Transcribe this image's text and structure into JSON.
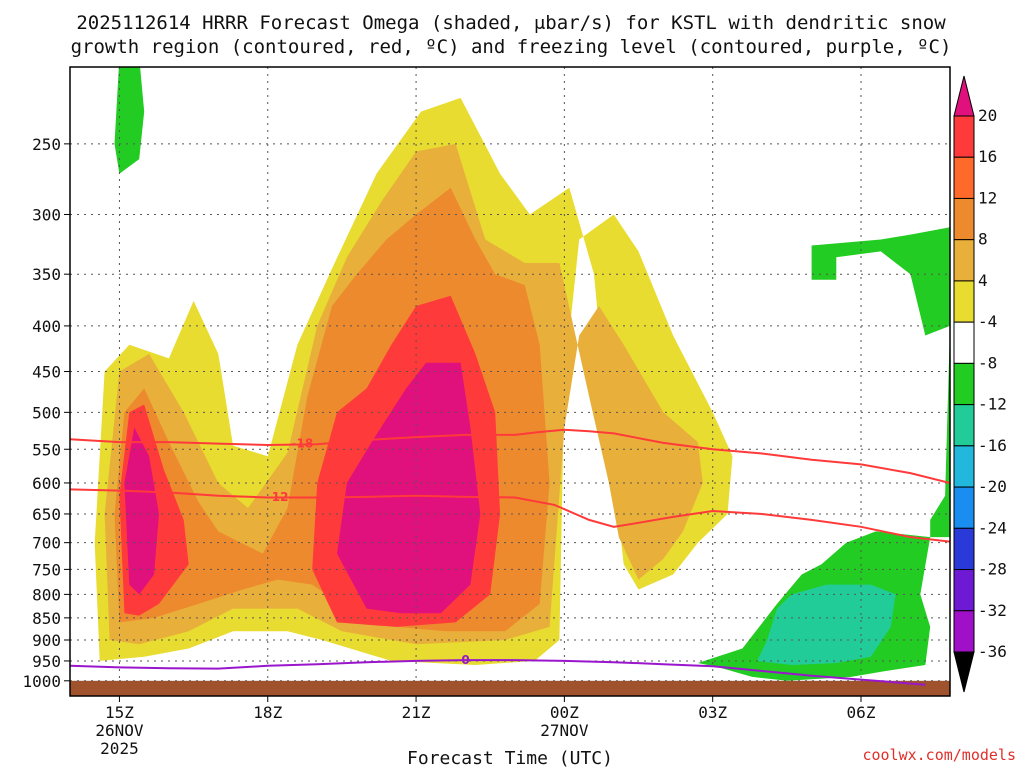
{
  "chart_data": {
    "type": "heatmap",
    "title_line1": "2025112614 HRRR Forecast Omega (shaded, μbar/s) for KSTL with dendritic snow",
    "title_line2": "growth region (contoured, red, ºC) and freezing level (contoured, purple, ºC)",
    "xlabel": "Forecast Time (UTC)",
    "credit": "coolwx.com/models",
    "x_ticks": [
      {
        "h": 15,
        "lines": [
          "15Z",
          "26NOV",
          "2025"
        ]
      },
      {
        "h": 18,
        "lines": [
          "18Z"
        ]
      },
      {
        "h": 21,
        "lines": [
          "21Z"
        ]
      },
      {
        "h": 24,
        "lines": [
          "00Z",
          "27NOV"
        ]
      },
      {
        "h": 27,
        "lines": [
          "03Z"
        ]
      },
      {
        "h": 30,
        "lines": [
          "06Z"
        ]
      }
    ],
    "xlim": [
      14.0,
      31.8
    ],
    "y_scale": "log",
    "ylim": [
      1040,
      205
    ],
    "y_ticks": [
      250,
      300,
      350,
      400,
      450,
      500,
      550,
      600,
      650,
      700,
      750,
      800,
      850,
      900,
      950,
      1000
    ],
    "grid": true,
    "ground_level_hpa": 1000,
    "colorbar": {
      "levels": [
        20,
        16,
        12,
        8,
        4,
        -4,
        -8,
        -12,
        -16,
        -20,
        -24,
        -28,
        -32,
        -36
      ],
      "colors": [
        "#ff3a3a",
        "#ff6a2a",
        "#ee8a2e",
        "#e8b03a",
        "#e8dc30",
        "#ffffff",
        "#22cc22",
        "#22cc99",
        "#22b8dd",
        "#1a8ef0",
        "#2a3ad8",
        "#6e1ad4",
        "#a010c8",
        "#a8a8a8"
      ],
      "top_color": "#e0107c",
      "bottom_color": "#000000"
    },
    "omega_regions": [
      {
        "level": 4,
        "color": "#e8dc30",
        "points": [
          [
            14.6,
            950
          ],
          [
            14.5,
            700
          ],
          [
            14.7,
            450
          ],
          [
            15.2,
            420
          ],
          [
            16.0,
            435
          ],
          [
            16.5,
            375
          ],
          [
            17.0,
            430
          ],
          [
            17.3,
            545
          ],
          [
            18.0,
            560
          ],
          [
            18.6,
            420
          ],
          [
            19.3,
            345
          ],
          [
            20.2,
            270
          ],
          [
            21.1,
            230
          ],
          [
            21.9,
            222
          ],
          [
            22.7,
            270
          ],
          [
            23.3,
            300
          ],
          [
            24.1,
            280
          ],
          [
            24.6,
            350
          ],
          [
            24.9,
            530
          ],
          [
            25.2,
            740
          ],
          [
            25.5,
            790
          ],
          [
            26.2,
            760
          ],
          [
            26.7,
            700
          ],
          [
            27.3,
            650
          ],
          [
            27.4,
            560
          ],
          [
            27.0,
            500
          ],
          [
            26.2,
            410
          ],
          [
            25.5,
            330
          ],
          [
            25.0,
            300
          ],
          [
            24.3,
            320
          ],
          [
            24.0,
            460
          ],
          [
            23.9,
            900
          ],
          [
            23.4,
            950
          ],
          [
            22.2,
            960
          ],
          [
            20.5,
            950
          ],
          [
            19.1,
            900
          ],
          [
            18.4,
            880
          ],
          [
            17.3,
            880
          ],
          [
            16.4,
            920
          ],
          [
            15.5,
            940
          ]
        ]
      },
      {
        "level": 8,
        "color": "#e8b03a",
        "points": [
          [
            14.8,
            900
          ],
          [
            14.7,
            650
          ],
          [
            15.0,
            450
          ],
          [
            15.6,
            430
          ],
          [
            16.3,
            500
          ],
          [
            17.0,
            600
          ],
          [
            17.6,
            640
          ],
          [
            18.4,
            555
          ],
          [
            19.0,
            400
          ],
          [
            19.6,
            335
          ],
          [
            20.3,
            290
          ],
          [
            21.0,
            255
          ],
          [
            21.8,
            250
          ],
          [
            22.4,
            320
          ],
          [
            23.2,
            340
          ],
          [
            23.9,
            340
          ],
          [
            24.5,
            480
          ],
          [
            24.9,
            600
          ],
          [
            25.1,
            690
          ],
          [
            25.5,
            770
          ],
          [
            26.0,
            730
          ],
          [
            26.4,
            680
          ],
          [
            26.8,
            600
          ],
          [
            26.7,
            540
          ],
          [
            26.0,
            500
          ],
          [
            25.2,
            420
          ],
          [
            24.7,
            380
          ],
          [
            24.3,
            410
          ],
          [
            24.0,
            520
          ],
          [
            23.7,
            870
          ],
          [
            22.8,
            900
          ],
          [
            21.0,
            910
          ],
          [
            19.5,
            880
          ],
          [
            18.6,
            830
          ],
          [
            17.3,
            830
          ],
          [
            16.4,
            880
          ],
          [
            15.4,
            910
          ]
        ]
      },
      {
        "level": 12,
        "color": "#ee8a2e",
        "points": [
          [
            15.0,
            860
          ],
          [
            14.9,
            650
          ],
          [
            15.1,
            500
          ],
          [
            15.5,
            470
          ],
          [
            16.0,
            540
          ],
          [
            16.6,
            630
          ],
          [
            17.0,
            680
          ],
          [
            17.9,
            720
          ],
          [
            18.4,
            640
          ],
          [
            18.8,
            480
          ],
          [
            19.3,
            380
          ],
          [
            19.8,
            350
          ],
          [
            20.4,
            320
          ],
          [
            21.0,
            300
          ],
          [
            21.7,
            280
          ],
          [
            22.2,
            320
          ],
          [
            22.6,
            350
          ],
          [
            23.2,
            360
          ],
          [
            23.5,
            420
          ],
          [
            23.7,
            600
          ],
          [
            23.5,
            820
          ],
          [
            22.8,
            880
          ],
          [
            21.6,
            880
          ],
          [
            20.6,
            870
          ],
          [
            19.6,
            830
          ],
          [
            18.9,
            780
          ],
          [
            18.2,
            770
          ],
          [
            17.5,
            790
          ],
          [
            16.6,
            820
          ],
          [
            15.7,
            850
          ]
        ]
      },
      {
        "level": 16,
        "color": "#ff3a3a",
        "points": [
          [
            15.1,
            840
          ],
          [
            15.0,
            620
          ],
          [
            15.2,
            500
          ],
          [
            15.5,
            490
          ],
          [
            15.9,
            580
          ],
          [
            16.3,
            660
          ],
          [
            16.4,
            740
          ],
          [
            15.8,
            820
          ],
          [
            15.4,
            845
          ]
        ]
      },
      {
        "level": 16,
        "color": "#ff3a3a",
        "points": [
          [
            19.4,
            860
          ],
          [
            18.9,
            750
          ],
          [
            19.0,
            600
          ],
          [
            19.4,
            500
          ],
          [
            20.0,
            470
          ],
          [
            20.5,
            420
          ],
          [
            21.0,
            380
          ],
          [
            21.7,
            370
          ],
          [
            22.2,
            430
          ],
          [
            22.6,
            500
          ],
          [
            22.7,
            650
          ],
          [
            22.5,
            800
          ],
          [
            21.8,
            860
          ],
          [
            20.6,
            870
          ]
        ]
      },
      {
        "level": 20,
        "color": "#e0107c",
        "points": [
          [
            15.2,
            780
          ],
          [
            15.1,
            600
          ],
          [
            15.3,
            520
          ],
          [
            15.6,
            560
          ],
          [
            15.8,
            650
          ],
          [
            15.7,
            760
          ],
          [
            15.4,
            800
          ]
        ]
      },
      {
        "level": 20,
        "color": "#e0107c",
        "points": [
          [
            20.0,
            830
          ],
          [
            19.4,
            720
          ],
          [
            19.6,
            600
          ],
          [
            20.1,
            540
          ],
          [
            20.8,
            470
          ],
          [
            21.2,
            440
          ],
          [
            21.9,
            440
          ],
          [
            22.1,
            520
          ],
          [
            22.3,
            650
          ],
          [
            22.1,
            780
          ],
          [
            21.5,
            840
          ],
          [
            20.7,
            840
          ]
        ]
      },
      {
        "level": -4,
        "color": "#22cc22",
        "points": [
          [
            14.9,
            250
          ],
          [
            15.0,
            200
          ],
          [
            15.4,
            200
          ],
          [
            15.5,
            230
          ],
          [
            15.4,
            260
          ],
          [
            15.0,
            270
          ]
        ]
      },
      {
        "level": -4,
        "color": "#22cc22",
        "points": [
          [
            29.0,
            355
          ],
          [
            29.0,
            325
          ],
          [
            30.4,
            320
          ],
          [
            31.0,
            316
          ],
          [
            31.8,
            310
          ],
          [
            31.8,
            690
          ],
          [
            31.4,
            690
          ],
          [
            31.4,
            660
          ],
          [
            31.7,
            620
          ],
          [
            31.8,
            400
          ],
          [
            31.3,
            410
          ],
          [
            31.0,
            350
          ],
          [
            30.4,
            330
          ],
          [
            29.5,
            335
          ],
          [
            29.5,
            355
          ]
        ]
      },
      {
        "level": -4,
        "color": "#22cc22",
        "points": [
          [
            26.7,
            955
          ],
          [
            27.6,
            920
          ],
          [
            28.3,
            820
          ],
          [
            28.8,
            760
          ],
          [
            29.2,
            740
          ],
          [
            29.7,
            700
          ],
          [
            30.3,
            680
          ],
          [
            31.4,
            690
          ],
          [
            31.2,
            800
          ],
          [
            31.4,
            870
          ],
          [
            31.3,
            960
          ],
          [
            30.5,
            975
          ],
          [
            29.8,
            990
          ],
          [
            28.5,
            1000
          ],
          [
            27.8,
            990
          ],
          [
            27.1,
            965
          ]
        ]
      },
      {
        "level": -8,
        "color": "#22cc99",
        "points": [
          [
            27.9,
            950
          ],
          [
            28.1,
            900
          ],
          [
            28.3,
            830
          ],
          [
            28.6,
            800
          ],
          [
            29.3,
            780
          ],
          [
            30.2,
            780
          ],
          [
            30.7,
            800
          ],
          [
            30.6,
            870
          ],
          [
            30.2,
            940
          ],
          [
            29.5,
            955
          ],
          [
            28.6,
            960
          ]
        ]
      }
    ],
    "overlay_region_white": [
      [
        23.9,
        900
      ],
      [
        24.3,
        870
      ],
      [
        24.5,
        920
      ],
      [
        24.2,
        950
      ],
      [
        23.8,
        940
      ]
    ],
    "contours": [
      {
        "label": "-18",
        "color": "#ff3a3a",
        "label_at": [
          18.7,
          542
        ],
        "points": [
          [
            14.0,
            536
          ],
          [
            15.0,
            540
          ],
          [
            16.0,
            540
          ],
          [
            17.0,
            542
          ],
          [
            18.0,
            544
          ],
          [
            19.0,
            543
          ],
          [
            20.0,
            537
          ],
          [
            21.0,
            533
          ],
          [
            22.0,
            530
          ],
          [
            23.0,
            530
          ],
          [
            23.5,
            526
          ],
          [
            24.0,
            523
          ],
          [
            24.5,
            525
          ],
          [
            25.0,
            528
          ],
          [
            26.0,
            541
          ],
          [
            27.0,
            550
          ],
          [
            28.0,
            556
          ],
          [
            29.0,
            565
          ],
          [
            30.0,
            572
          ],
          [
            31.0,
            585
          ],
          [
            31.8,
            600
          ]
        ]
      },
      {
        "label": "-12",
        "color": "#ff3a3a",
        "label_at": [
          18.2,
          622
        ],
        "points": [
          [
            14.0,
            610
          ],
          [
            15.0,
            612
          ],
          [
            16.0,
            615
          ],
          [
            17.0,
            620
          ],
          [
            18.0,
            623
          ],
          [
            19.0,
            623
          ],
          [
            20.0,
            622
          ],
          [
            21.0,
            620
          ],
          [
            22.0,
            622
          ],
          [
            23.0,
            623
          ],
          [
            23.8,
            635
          ],
          [
            24.5,
            660
          ],
          [
            25.0,
            672
          ],
          [
            25.5,
            665
          ],
          [
            26.2,
            655
          ],
          [
            27.0,
            645
          ],
          [
            28.0,
            650
          ],
          [
            29.0,
            660
          ],
          [
            30.0,
            672
          ],
          [
            31.0,
            690
          ],
          [
            31.8,
            698
          ]
        ]
      },
      {
        "label": "0",
        "color": "#9a16cc",
        "label_at": [
          22.0,
          948
        ],
        "points": [
          [
            14.0,
            962
          ],
          [
            15.0,
            966
          ],
          [
            16.0,
            968
          ],
          [
            17.0,
            969
          ],
          [
            18.0,
            962
          ],
          [
            19.0,
            958
          ],
          [
            20.0,
            953
          ],
          [
            21.0,
            950
          ],
          [
            22.0,
            948
          ],
          [
            23.0,
            948
          ],
          [
            24.0,
            950
          ],
          [
            25.0,
            953
          ],
          [
            26.0,
            958
          ],
          [
            27.0,
            963
          ],
          [
            28.0,
            975
          ],
          [
            29.0,
            987
          ],
          [
            30.0,
            997
          ],
          [
            31.3,
            1010
          ]
        ]
      }
    ]
  }
}
